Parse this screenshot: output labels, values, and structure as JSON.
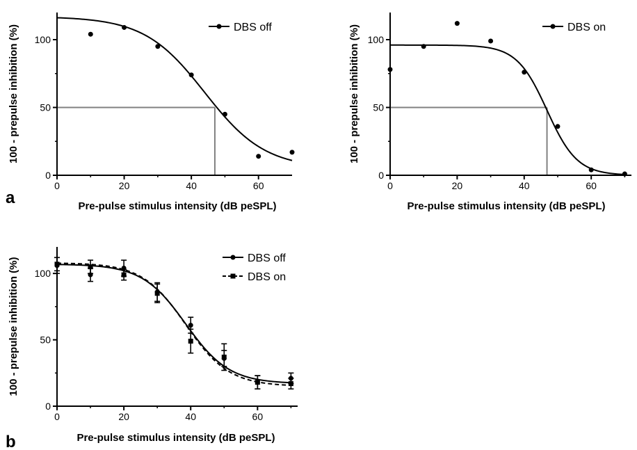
{
  "panel_labels": {
    "a": "a",
    "b": "b"
  },
  "chart_data": [
    {
      "id": "a-left",
      "type": "scatter",
      "xlabel": "Pre-pulse stimulus intensity  (dB peSPL)",
      "ylabel": "100 - prepulse inhibition  (%)",
      "xlim": [
        0,
        70
      ],
      "ylim": [
        0,
        120
      ],
      "xticks": [
        0,
        20,
        40,
        60
      ],
      "yticks": [
        0,
        50,
        100
      ],
      "legend_position": "top-right",
      "series": [
        {
          "name": "DBS off",
          "marker": "circle",
          "line": "solid",
          "x": [
            10,
            20,
            30,
            40,
            50,
            60,
            70
          ],
          "y": [
            104,
            109,
            95,
            74,
            45,
            14,
            17
          ],
          "fit": {
            "top": 117,
            "bottom": 5,
            "x50": 44,
            "slope": 9
          }
        }
      ],
      "reference_lines": {
        "y": 50,
        "x": 47
      }
    },
    {
      "id": "a-right",
      "type": "scatter",
      "xlabel": "Pre-pulse stimulus intensity  (dB peSPL)",
      "ylabel": "100 - prepulse inhibition  (%)",
      "xlim": [
        0,
        72
      ],
      "ylim": [
        0,
        120
      ],
      "xticks": [
        0,
        20,
        40,
        60
      ],
      "yticks": [
        0,
        50,
        100
      ],
      "legend_position": "top-right",
      "series": [
        {
          "name": "DBS on",
          "marker": "circle",
          "line": "solid",
          "x": [
            0,
            10,
            20,
            30,
            40,
            50,
            60,
            70
          ],
          "y": [
            78,
            95,
            112,
            99,
            76,
            36,
            4,
            1
          ],
          "fit": {
            "top": 96,
            "bottom": 0,
            "x50": 46.8,
            "slope": 4.5
          }
        }
      ],
      "reference_lines": {
        "y": 50,
        "x": 46.8
      }
    },
    {
      "id": "b",
      "type": "line",
      "xlabel": "Pre-pulse stimulus intensity  (dB peSPL)",
      "ylabel": "100 - prepulse inhibition  (%)",
      "xlim": [
        0,
        72
      ],
      "ylim": [
        0,
        120
      ],
      "xticks": [
        0,
        20,
        40,
        60
      ],
      "yticks": [
        0,
        50,
        100
      ],
      "legend_position": "top-right",
      "series": [
        {
          "name": "DBS off",
          "marker": "circle",
          "line": "solid",
          "x": [
            0,
            10,
            20,
            30,
            40,
            50,
            60,
            70
          ],
          "y": [
            106,
            99,
            104,
            86,
            61,
            36,
            18,
            21
          ],
          "err": [
            6,
            5,
            6,
            7,
            6,
            6,
            5,
            4
          ],
          "fit": {
            "top": 107,
            "bottom": 17,
            "x50": 38.5,
            "slope": 6.5
          }
        },
        {
          "name": "DBS on",
          "marker": "square",
          "line": "dashed",
          "x": [
            0,
            10,
            20,
            30,
            40,
            50,
            60,
            70
          ],
          "y": [
            107,
            105,
            99,
            85,
            49,
            37,
            18,
            17
          ],
          "err": [
            5,
            5,
            4,
            7,
            9,
            10,
            5,
            4
          ],
          "fit": {
            "top": 108,
            "bottom": 15,
            "x50": 38.5,
            "slope": 6.5
          }
        }
      ]
    }
  ]
}
